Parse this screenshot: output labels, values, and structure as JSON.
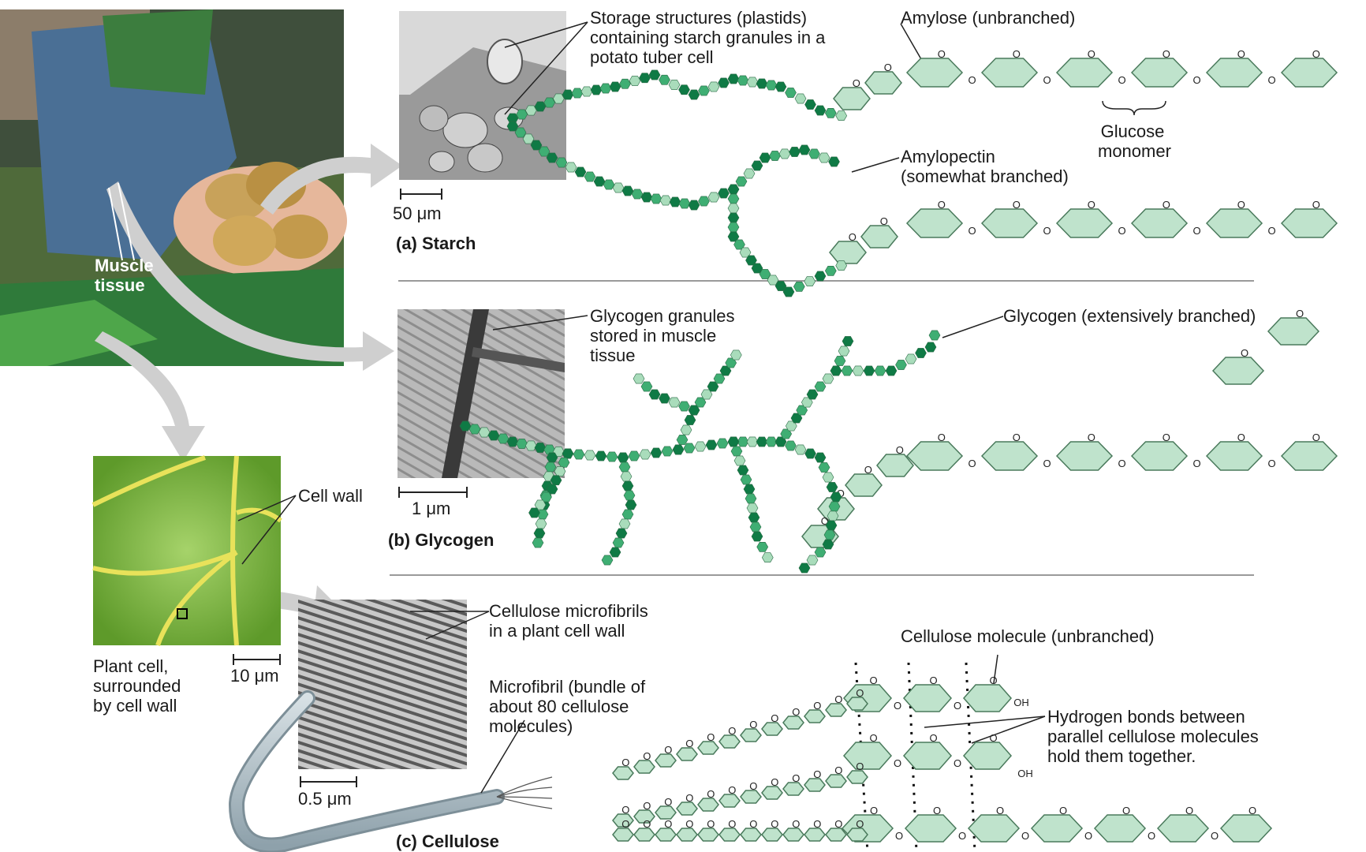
{
  "labels": {
    "muscle_tissue": "Muscle\ntissue",
    "storage_structures": "Storage structures (plastids)\ncontaining starch granules in a\npotato tuber cell",
    "scale_starch": "50 μm",
    "panel_a": "(a) Starch",
    "amylose": "Amylose (unbranched)",
    "glucose_monomer": "Glucose\nmonomer",
    "amylopectin": "Amylopectin\n(somewhat branched)",
    "glycogen_granules": "Glycogen granules\nstored in muscle\ntissue",
    "glycogen": "Glycogen (extensively branched)",
    "scale_glycogen": "1 μm",
    "panel_b": "(b) Glycogen",
    "cell_wall": "Cell wall",
    "plant_cell": "Plant cell,\nsurrounded\nby cell wall",
    "scale_leaf": "10 μm",
    "cellulose_microfibrils": "Cellulose microfibrils\nin a plant cell wall",
    "microfibril": "Microfibril (bundle of\nabout 80 cellulose\nmolecules)",
    "scale_cellulose": "0.5 μm",
    "panel_c": "(c) Cellulose",
    "cellulose_molecule": "Cellulose molecule (unbranched)",
    "hydrogen_bonds": "Hydrogen bonds between\nparallel cellulose molecules\nhold them together.",
    "ring_o": "O",
    "oh": "OH"
  },
  "colors": {
    "ring_fill": "#bfe3cc",
    "ring_stroke": "#4a7a5c",
    "dark_green": "#0f7a45",
    "mid_green": "#3fae73",
    "light_green": "#a9dcbb",
    "arrow_gray": "#cfcfcf",
    "divider": "#9a9a9a"
  },
  "icons": [
    "right-arrow-icon",
    "potato-photo",
    "starch-micrograph",
    "glycogen-micrograph",
    "leaf-micrograph",
    "cellulose-micrograph"
  ]
}
